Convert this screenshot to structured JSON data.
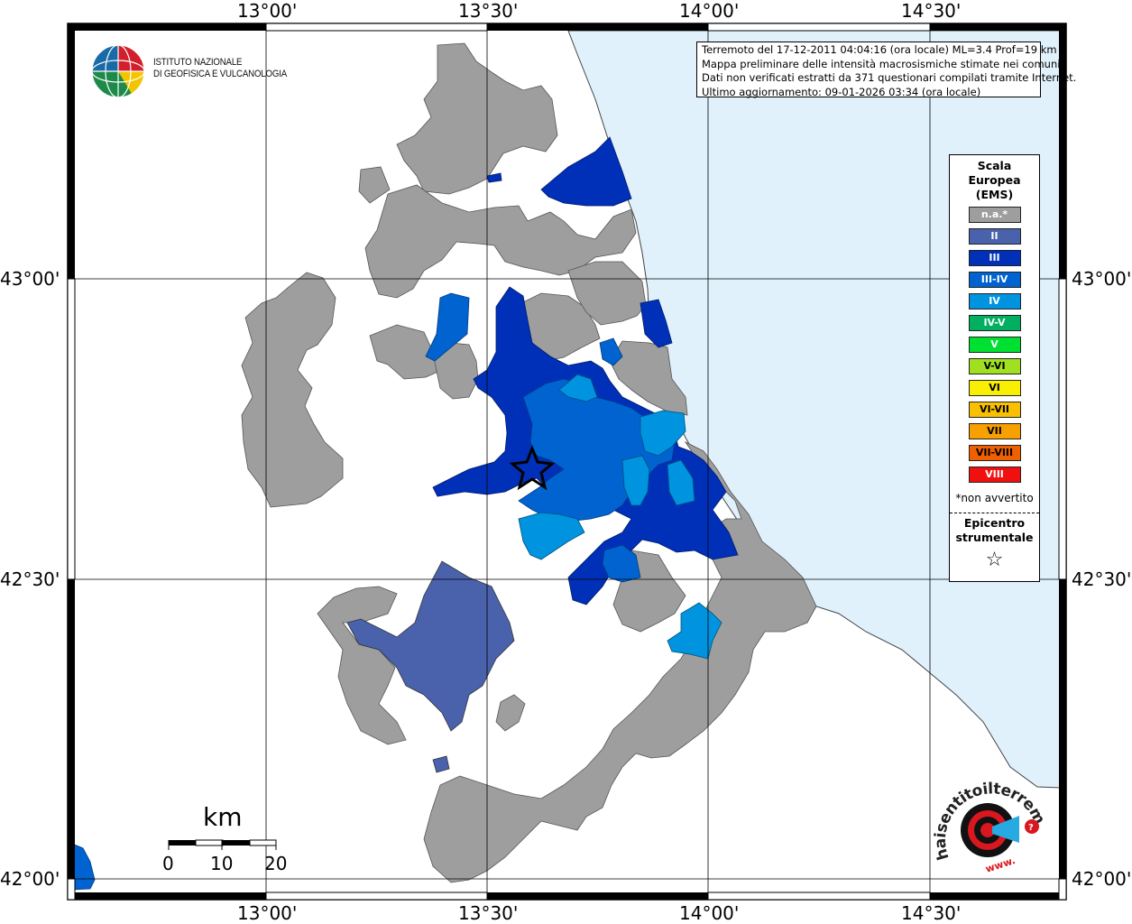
{
  "title_box": {
    "line1": "Terremoto del 17-12-2011 04:04:16 (ora locale) ML=3.4 Prof=19 km",
    "line2": "Mappa preliminare delle intensità macrosismiche stimate nei comuni",
    "line3": "Dati non verificati estratti da 371 questionari compilati tramite Internet.",
    "line4": "Ultimo aggiornamento: 09-01-2026 03:34 (ora locale)"
  },
  "axes": {
    "longitudes": [
      "13°00'",
      "13°30'",
      "14°00'",
      "14°30'"
    ],
    "latitudes": [
      "43°00'",
      "42°30'",
      "42°00'"
    ]
  },
  "institute": {
    "line1": "ISTITUTO NAZIONALE",
    "line2": "DI GEOFISICA E VULCANOLOGIA"
  },
  "legend": {
    "title": "Scala Europea (EMS)",
    "title_lines": [
      "Scala",
      "Europea",
      "(EMS)"
    ],
    "items": [
      {
        "label": "n.a.*",
        "color": "#9e9e9e"
      },
      {
        "label": "II",
        "color": "#4a61ac"
      },
      {
        "label": "III",
        "color": "#0030b8"
      },
      {
        "label": "III-IV",
        "color": "#0063d0"
      },
      {
        "label": "IV",
        "color": "#0093e0"
      },
      {
        "label": "IV-V",
        "color": "#00b060"
      },
      {
        "label": "V",
        "color": "#00e030"
      },
      {
        "label": "V-VI",
        "color": "#a0e020"
      },
      {
        "label": "VI",
        "color": "#f8f000"
      },
      {
        "label": "VI-VII",
        "color": "#f8c000"
      },
      {
        "label": "VII",
        "color": "#f8a000"
      },
      {
        "label": "VII-VIII",
        "color": "#f06000"
      },
      {
        "label": "VIII",
        "color": "#f01010"
      }
    ],
    "note": "*non avvertito",
    "epicenter_lines": [
      "Epicentro",
      "strumentale"
    ],
    "epicenter_symbol": "☆"
  },
  "scale_bar": {
    "unit": "km",
    "ticks": [
      "0",
      "10",
      "20"
    ]
  },
  "logos": {
    "hst_text": "haisentitoilterremoto.it",
    "hst_url": "www."
  },
  "colors": {
    "sea": "#e0f1fc",
    "land": "#ffffff",
    "na": "#9e9e9e",
    "ii": "#4a61ac",
    "iii": "#0030b8",
    "iii_iv": "#0063d0",
    "iv": "#0093e0",
    "grid": "#000000"
  }
}
